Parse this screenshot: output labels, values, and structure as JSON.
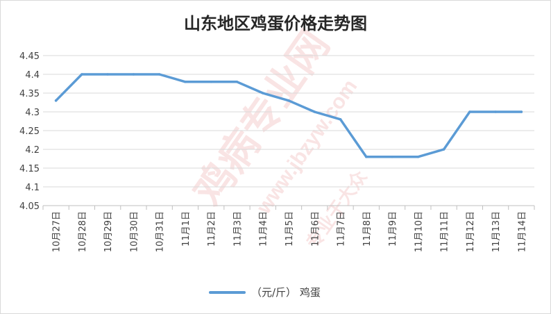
{
  "chart_data": {
    "type": "line",
    "title": "山东地区鸡蛋价格走势图",
    "categories": [
      "10月27日",
      "10月28日",
      "10月29日",
      "10月30日",
      "10月31日",
      "11月1日",
      "11月2日",
      "11月3日",
      "11月4日",
      "11月5日",
      "11月6日",
      "11月7日",
      "11月8日",
      "11月9日",
      "11月10日",
      "11月11日",
      "11月12日",
      "11月13日",
      "11月14日"
    ],
    "series": [
      {
        "name": "（元/斤） 鸡蛋",
        "values": [
          4.33,
          4.4,
          4.4,
          4.4,
          4.4,
          4.38,
          4.38,
          4.38,
          4.35,
          4.33,
          4.3,
          4.28,
          4.18,
          4.18,
          4.18,
          4.2,
          4.3,
          4.3,
          4.3
        ],
        "color": "#5b9bd5"
      }
    ],
    "yticks": [
      "4.05",
      "4.1",
      "4.15",
      "4.2",
      "4.25",
      "4.3",
      "4.35",
      "4.4",
      "4.45"
    ],
    "ylim": [
      4.05,
      4.45
    ],
    "grid": true,
    "legend_position": "bottom",
    "xlabel": "",
    "ylabel": ""
  },
  "watermark": {
    "text_main": "鸡病专业网",
    "text_url": "www.jbzyw.com",
    "text_slogan": "专业于大众",
    "color": "#e06060"
  },
  "colors": {
    "grid": "#d9d9d9",
    "axis": "#bfbfbf",
    "text": "#404040"
  }
}
